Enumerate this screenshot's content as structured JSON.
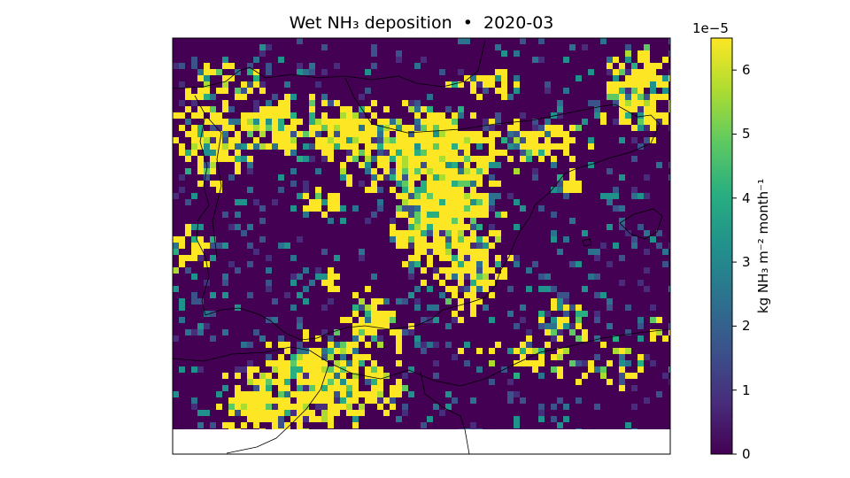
{
  "title": "Wet NH₃ deposition  •  2020-03",
  "colorbar": {
    "label": "kg NH₃ m⁻² month⁻¹",
    "exponent": "1e−5",
    "ticks": [
      "0",
      "1",
      "2",
      "3",
      "4",
      "5",
      "6"
    ],
    "vmin": 0,
    "vmax": 6.5,
    "colormap": [
      "#440154",
      "#472d7b",
      "#3b528b",
      "#2c728e",
      "#21918c",
      "#28ae80",
      "#5ec962",
      "#addc30",
      "#fde725"
    ]
  },
  "map": {
    "region": "Iberian Peninsula and NW Africa",
    "colors": {
      "low": "#440154",
      "high": "#fde725",
      "coastline": "#000000",
      "nodata": "#ffffff"
    }
  }
}
